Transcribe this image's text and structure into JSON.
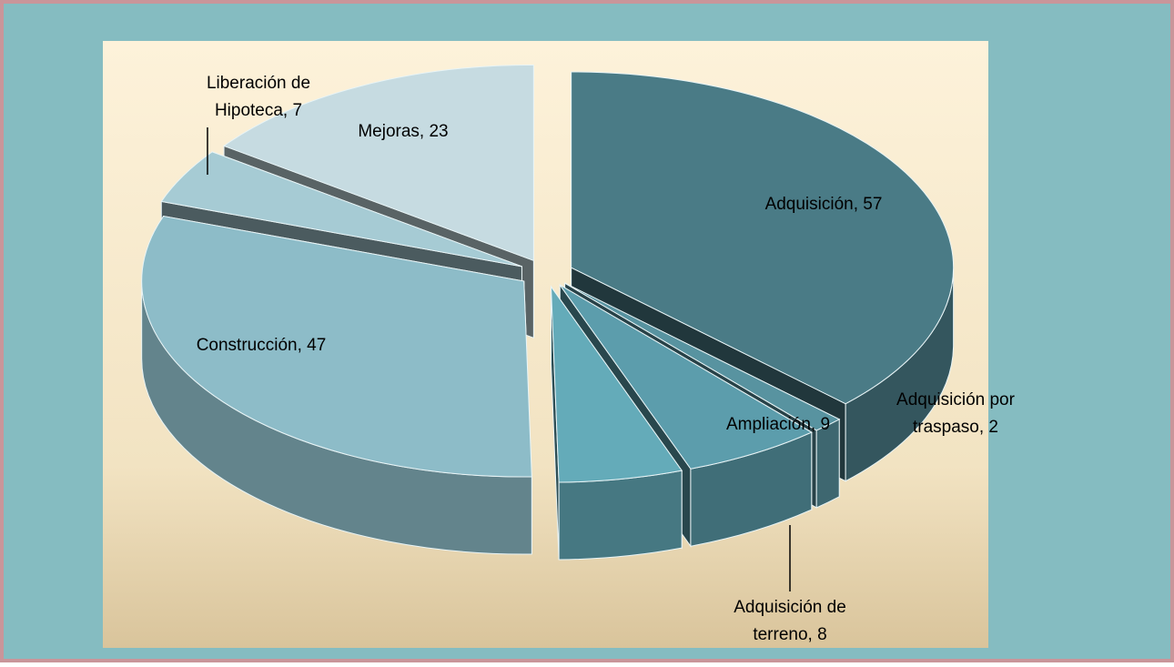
{
  "chart_data": {
    "type": "pie3d",
    "categories": [
      "Adquisición",
      "Adquisición por traspaso",
      "Ampliación",
      "Adquisición de terreno",
      "Construcción",
      "Liberación de Hipoteca",
      "Mejoras"
    ],
    "values": [
      57,
      2,
      9,
      8,
      47,
      7,
      23
    ],
    "value_labels": [
      "Adquisición, 57",
      "Adquisición por traspaso, 2",
      "Ampliación, 9",
      "Adquisición de terreno, 8",
      "Construcción, 47",
      "Liberación de Hipoteca, 7",
      "Mejoras, 23"
    ],
    "colors": [
      "#4a7b86",
      "#5893a0",
      "#5c9dac",
      "#64abb9",
      "#8dbcc8",
      "#a6cbd4",
      "#c6dbe1"
    ]
  }
}
